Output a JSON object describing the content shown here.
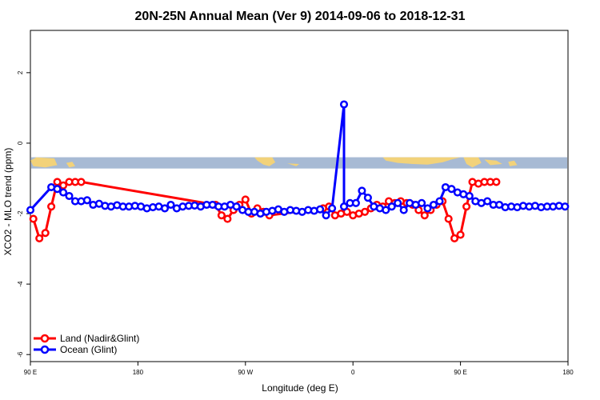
{
  "chart_data": {
    "type": "line",
    "title": "20N-25N Annual Mean (Ver 9)   2014-09-06 to 2018-12-31",
    "xlabel": "Longitude (deg E)",
    "ylabel": "XCO2 - MLO trend (ppm)",
    "xlim": [
      90,
      450
    ],
    "ylim": [
      -6.2,
      3.2
    ],
    "x_ticks": [
      90,
      162,
      234,
      306,
      378,
      450
    ],
    "x_tick_labels": [
      "90 E",
      "180",
      "90 W",
      "0",
      "90 E",
      "180"
    ],
    "y_ticks": [
      -6,
      -4,
      -2,
      0,
      2
    ],
    "y_tick_labels": [
      "-6",
      "-4",
      "-2",
      "0",
      "2"
    ],
    "map_strip": {
      "lat_from": 20,
      "lat_to": 25,
      "y_top": -0.4,
      "y_bottom": -0.72,
      "ocean_color": "#a7bad4",
      "land_color": "#f2d27a"
    },
    "series": [
      {
        "name": "Land (Nadir&Glint)",
        "color": "#ff0000",
        "x": [
          92,
          96,
          100,
          104,
          108,
          112,
          116,
          120,
          124,
          214,
          218,
          222,
          226,
          230,
          234,
          238,
          242,
          246,
          250,
          286,
          290,
          294,
          298,
          302,
          306,
          310,
          314,
          318,
          322,
          326,
          330,
          334,
          338,
          342,
          346,
          350,
          354,
          358,
          362,
          366,
          370,
          374,
          378,
          382,
          386,
          390,
          394,
          398,
          402
        ],
        "y": [
          -2.15,
          -2.7,
          -2.55,
          -1.8,
          -1.1,
          -1.2,
          -1.1,
          -1.1,
          -1.1,
          -1.75,
          -2.05,
          -2.15,
          -1.9,
          -1.75,
          -1.6,
          -2.0,
          -1.85,
          -1.95,
          -2.05,
          -1.85,
          -1.8,
          -2.05,
          -2.0,
          -1.95,
          -2.05,
          -2.0,
          -1.95,
          -1.85,
          -1.75,
          -1.8,
          -1.65,
          -1.7,
          -1.65,
          -1.7,
          -1.75,
          -1.9,
          -2.05,
          -1.9,
          -1.75,
          -1.65,
          -2.15,
          -2.7,
          -2.6,
          -1.8,
          -1.1,
          -1.15,
          -1.1,
          -1.1,
          -1.1
        ]
      },
      {
        "name": "Ocean (Glint)",
        "color": "#0000ff",
        "x": [
          90,
          104,
          108,
          112,
          116,
          120,
          124,
          128,
          132,
          136,
          140,
          144,
          148,
          152,
          156,
          160,
          164,
          168,
          172,
          176,
          180,
          184,
          188,
          192,
          196,
          200,
          204,
          208,
          212,
          216,
          220,
          224,
          228,
          232,
          236,
          240,
          244,
          248,
          252,
          256,
          260,
          264,
          268,
          272,
          276,
          280,
          284,
          288,
          292,
          300,
          300,
          304,
          308,
          312,
          316,
          320,
          324,
          328,
          332,
          336,
          340,
          344,
          348,
          352,
          356,
          360,
          364,
          368,
          372,
          376,
          380,
          384,
          388,
          392,
          396,
          400,
          404,
          408,
          412,
          416,
          420,
          424,
          428,
          432,
          436,
          440,
          444,
          448
        ],
        "y": [
          -1.9,
          -1.25,
          -1.3,
          -1.4,
          -1.5,
          -1.65,
          -1.65,
          -1.62,
          -1.75,
          -1.72,
          -1.78,
          -1.8,
          -1.76,
          -1.8,
          -1.8,
          -1.78,
          -1.8,
          -1.85,
          -1.82,
          -1.8,
          -1.85,
          -1.75,
          -1.85,
          -1.8,
          -1.78,
          -1.77,
          -1.8,
          -1.75,
          -1.75,
          -1.8,
          -1.8,
          -1.75,
          -1.8,
          -1.9,
          -1.95,
          -1.95,
          -2.0,
          -1.95,
          -1.92,
          -1.88,
          -1.95,
          -1.9,
          -1.92,
          -1.95,
          -1.9,
          -1.92,
          -1.88,
          -2.05,
          -1.85,
          1.1,
          -1.8,
          -1.7,
          -1.7,
          -1.35,
          -1.55,
          -1.8,
          -1.85,
          -1.9,
          -1.8,
          -1.7,
          -1.9,
          -1.7,
          -1.75,
          -1.7,
          -1.85,
          -1.75,
          -1.65,
          -1.25,
          -1.3,
          -1.4,
          -1.45,
          -1.5,
          -1.65,
          -1.7,
          -1.65,
          -1.75,
          -1.75,
          -1.82,
          -1.8,
          -1.82,
          -1.78,
          -1.8,
          -1.78,
          -1.82,
          -1.8,
          -1.8,
          -1.78,
          -1.8
        ]
      }
    ],
    "legend": {
      "position": "bottom-left"
    }
  }
}
